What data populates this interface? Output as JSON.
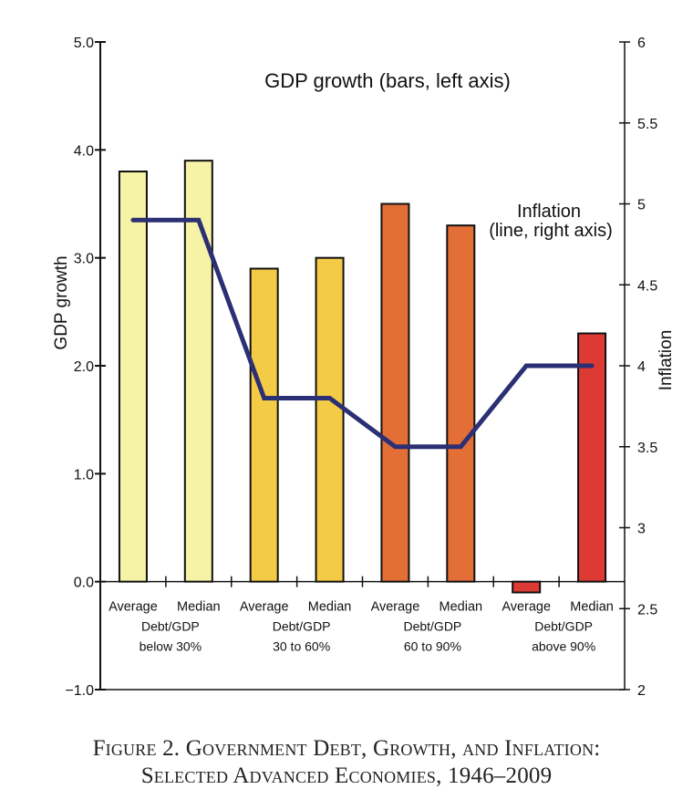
{
  "chart_data": {
    "type": "bar",
    "secondary_type": "line",
    "title": "",
    "caption": [
      "Figure 2. Government Debt, Growth, and Inflation:",
      "Selected Advanced Economies, 1946–2009"
    ],
    "annotations": {
      "bars_label": "GDP growth (bars, left axis)",
      "line_label_1": "Inflation",
      "line_label_2": "(line, right axis)"
    },
    "ylabel": "GDP growth",
    "y2label": "Inflation",
    "ylim": [
      -1.0,
      5.0
    ],
    "y2lim": [
      2,
      6
    ],
    "yticks": [
      "5.0",
      "4.0",
      "3.0",
      "2.0",
      "1.0",
      "0.0",
      "−1.0"
    ],
    "yticks_values": [
      5,
      4,
      3,
      2,
      1,
      0,
      -1
    ],
    "y2ticks": [
      "6",
      "5.5",
      "5",
      "4.5",
      "4",
      "3.5",
      "3",
      "2.5",
      "2"
    ],
    "y2ticks_values": [
      6,
      5.5,
      5,
      4.5,
      4,
      3.5,
      3,
      2.5,
      2
    ],
    "categories": [
      "Average",
      "Median",
      "Average",
      "Median",
      "Average",
      "Median",
      "Average",
      "Median"
    ],
    "groups": [
      {
        "line1": "Debt/GDP",
        "line2": "below 30%"
      },
      {
        "line1": "Debt/GDP",
        "line2": "30 to 60%"
      },
      {
        "line1": "Debt/GDP",
        "line2": "60 to 90%"
      },
      {
        "line1": "Debt/GDP",
        "line2": "above 90%"
      }
    ],
    "series": [
      {
        "name": "GDP growth",
        "axis": "left",
        "kind": "bar",
        "values": [
          3.8,
          3.9,
          2.9,
          3.0,
          3.5,
          3.3,
          -0.1,
          2.3
        ]
      },
      {
        "name": "Inflation",
        "axis": "right",
        "kind": "line",
        "color": "#2b2f73",
        "values": [
          4.9,
          4.9,
          3.8,
          3.8,
          3.5,
          3.5,
          4.0,
          4.0
        ]
      }
    ],
    "bar_colors": [
      "#f6f3a7",
      "#f6f3a7",
      "#f4cb46",
      "#f4cb46",
      "#e46f36",
      "#e46f36",
      "#dd3a33",
      "#dd3a33"
    ],
    "grid": false,
    "legend": "none"
  }
}
